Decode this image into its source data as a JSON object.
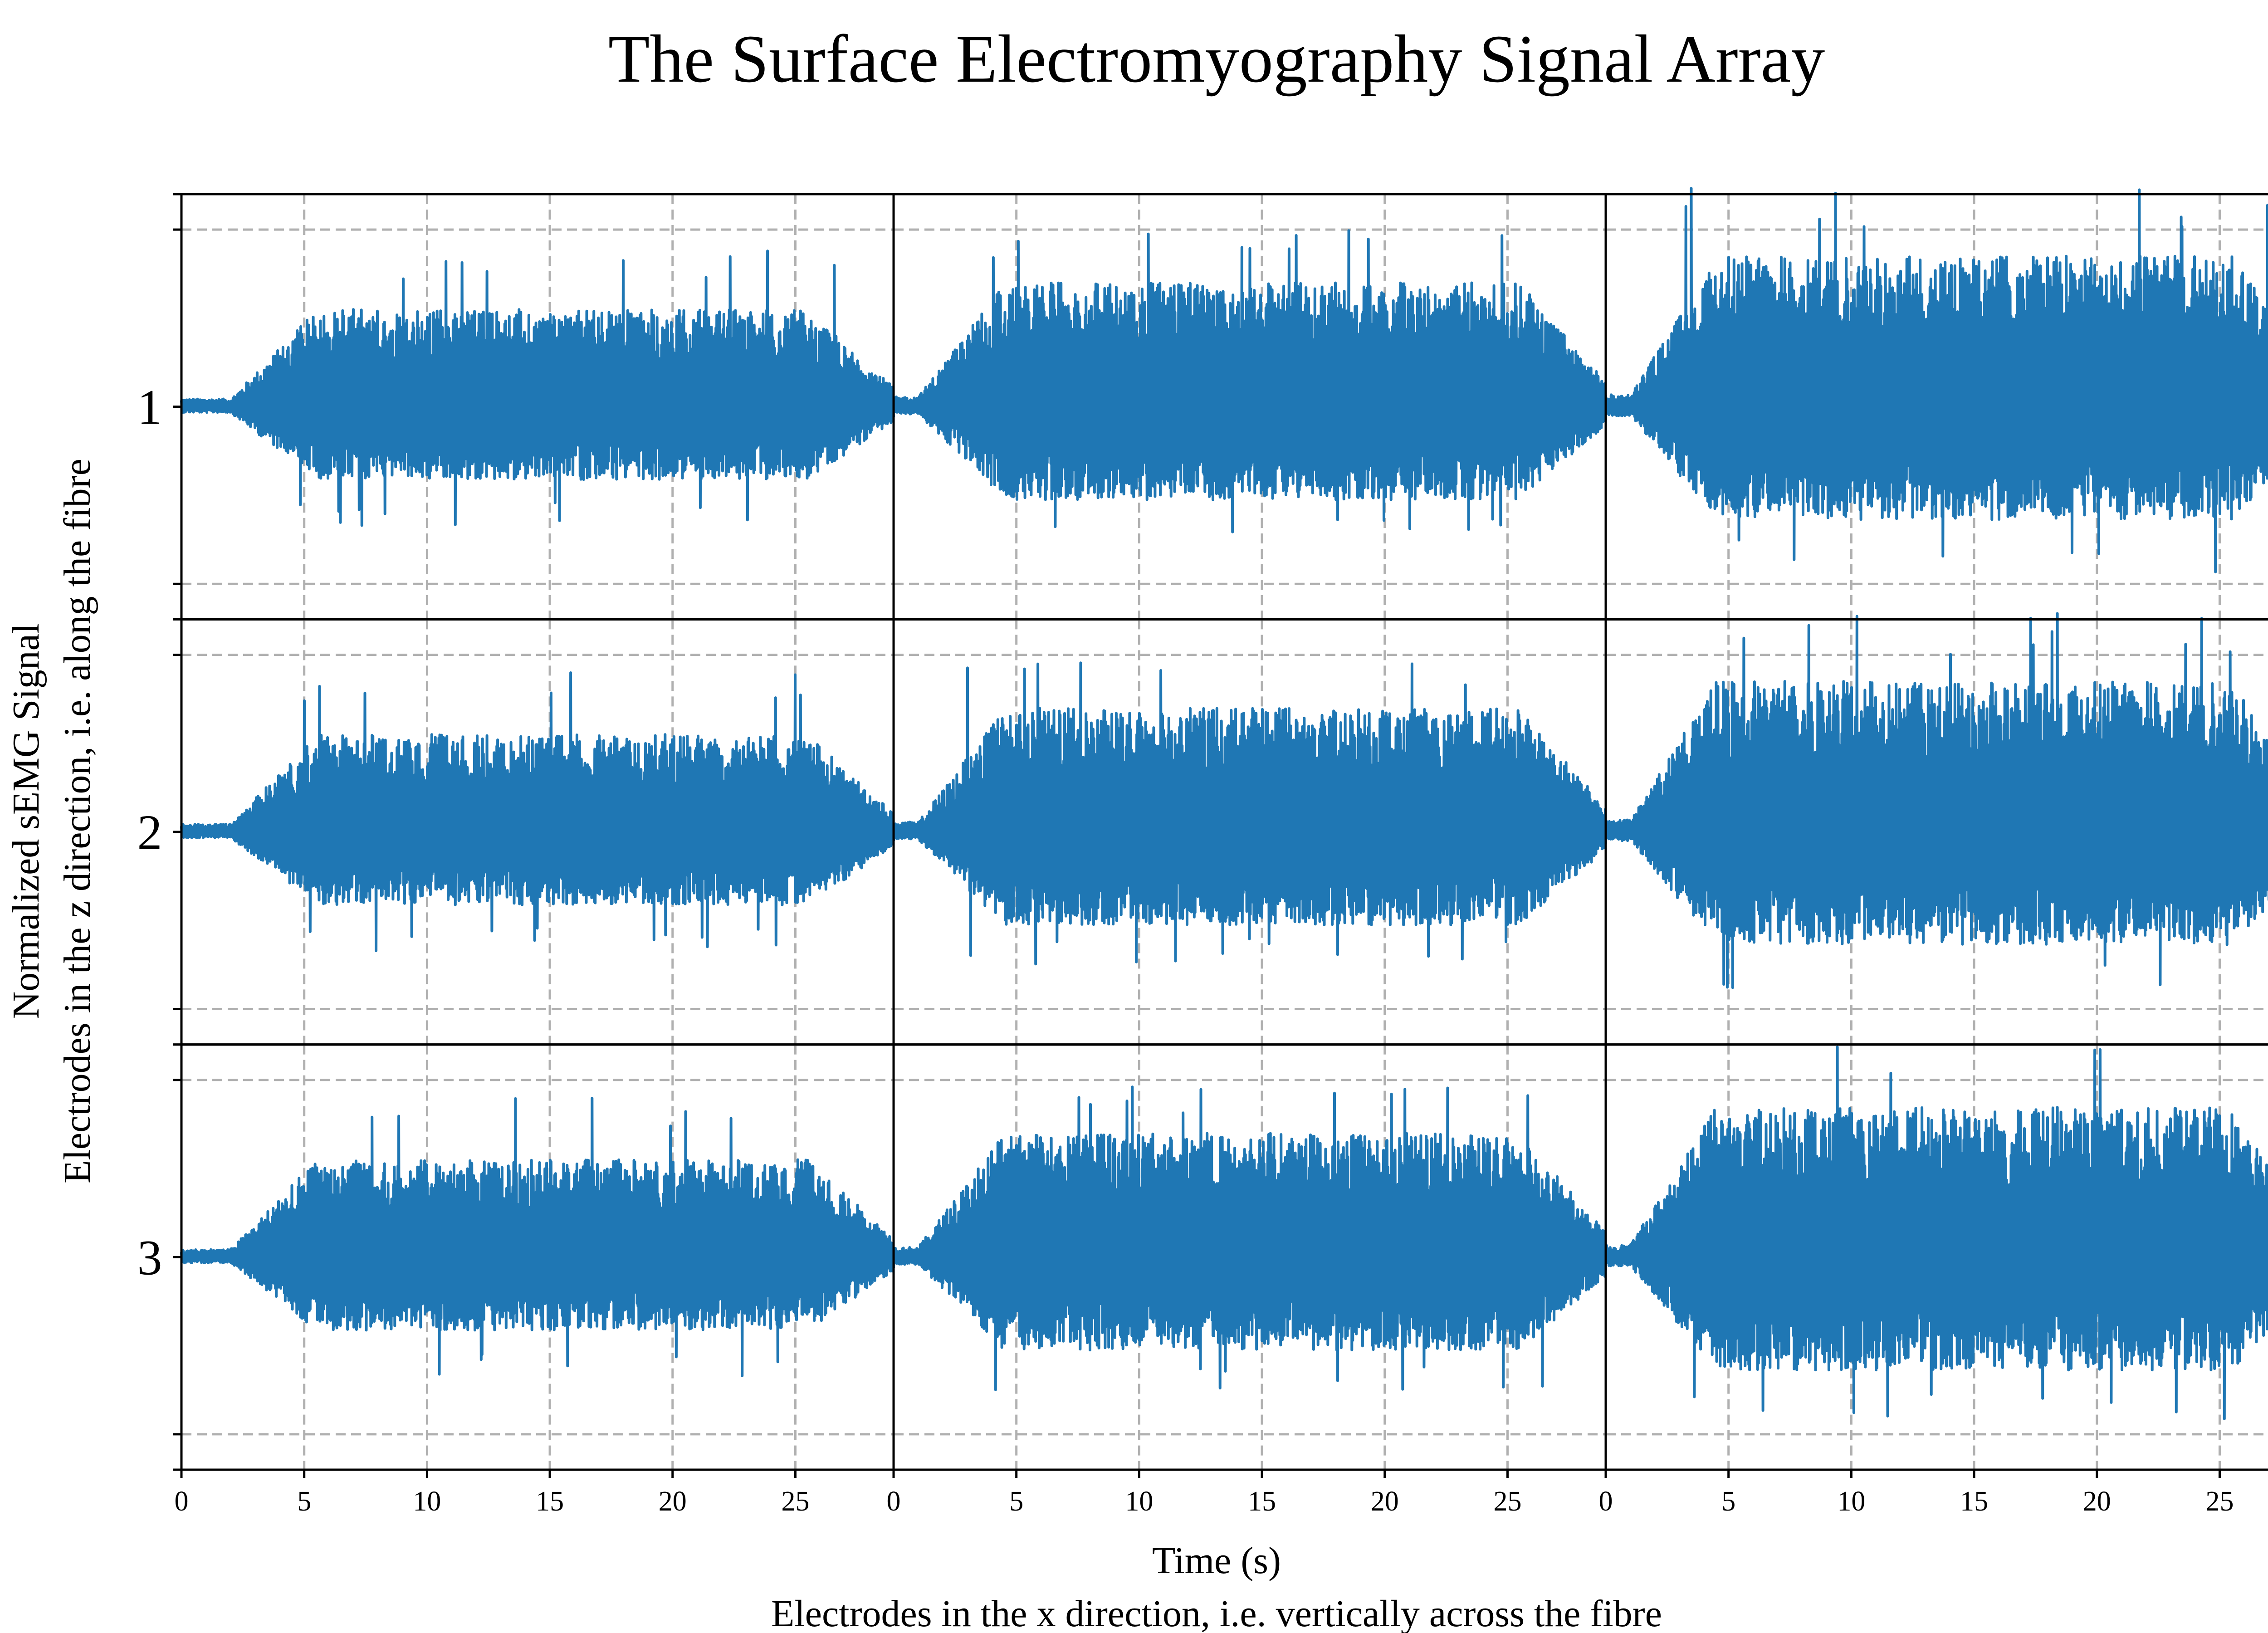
{
  "chart_data": {
    "type": "line",
    "title": "The Surface Electromyography Signal Array",
    "xlabel": "Time (s)",
    "xlabel2": "Electrodes in the x direction, i.e. vertically across the fibre",
    "ylabel": "Normalized sEMG Signal",
    "ylabel2": "Electrodes in the z direction, i.e. along the fibre",
    "grid": true,
    "layout": {
      "rows": 3,
      "cols": 3
    },
    "xlim": [
      0,
      29
    ],
    "x_ticks": [
      "0",
      "5",
      "10",
      "15",
      "20",
      "25"
    ],
    "row_labels": [
      "1",
      "2",
      "3"
    ],
    "color": "#1f77b4",
    "panels": [
      {
        "row": 1,
        "col": 1,
        "amplitude": 0.55,
        "spike_max": 0.9,
        "onset_s": 2,
        "offset_s": 29
      },
      {
        "row": 1,
        "col": 2,
        "amplitude": 0.7,
        "spike_max": 1.0,
        "onset_s": 1,
        "offset_s": 29
      },
      {
        "row": 1,
        "col": 3,
        "amplitude": 0.85,
        "spike_max": 1.25,
        "onset_s": 1,
        "offset_s": 29
      },
      {
        "row": 2,
        "col": 1,
        "amplitude": 0.55,
        "spike_max": 0.9,
        "onset_s": 2,
        "offset_s": 29
      },
      {
        "row": 2,
        "col": 2,
        "amplitude": 0.7,
        "spike_max": 1.0,
        "onset_s": 1,
        "offset_s": 29
      },
      {
        "row": 2,
        "col": 3,
        "amplitude": 0.85,
        "spike_max": 1.25,
        "onset_s": 1,
        "offset_s": 29
      },
      {
        "row": 3,
        "col": 1,
        "amplitude": 0.55,
        "spike_max": 0.9,
        "onset_s": 2,
        "offset_s": 29
      },
      {
        "row": 3,
        "col": 2,
        "amplitude": 0.7,
        "spike_max": 1.0,
        "onset_s": 1,
        "offset_s": 29
      },
      {
        "row": 3,
        "col": 3,
        "amplitude": 0.85,
        "spike_max": 1.25,
        "onset_s": 1,
        "offset_s": 29
      }
    ]
  }
}
